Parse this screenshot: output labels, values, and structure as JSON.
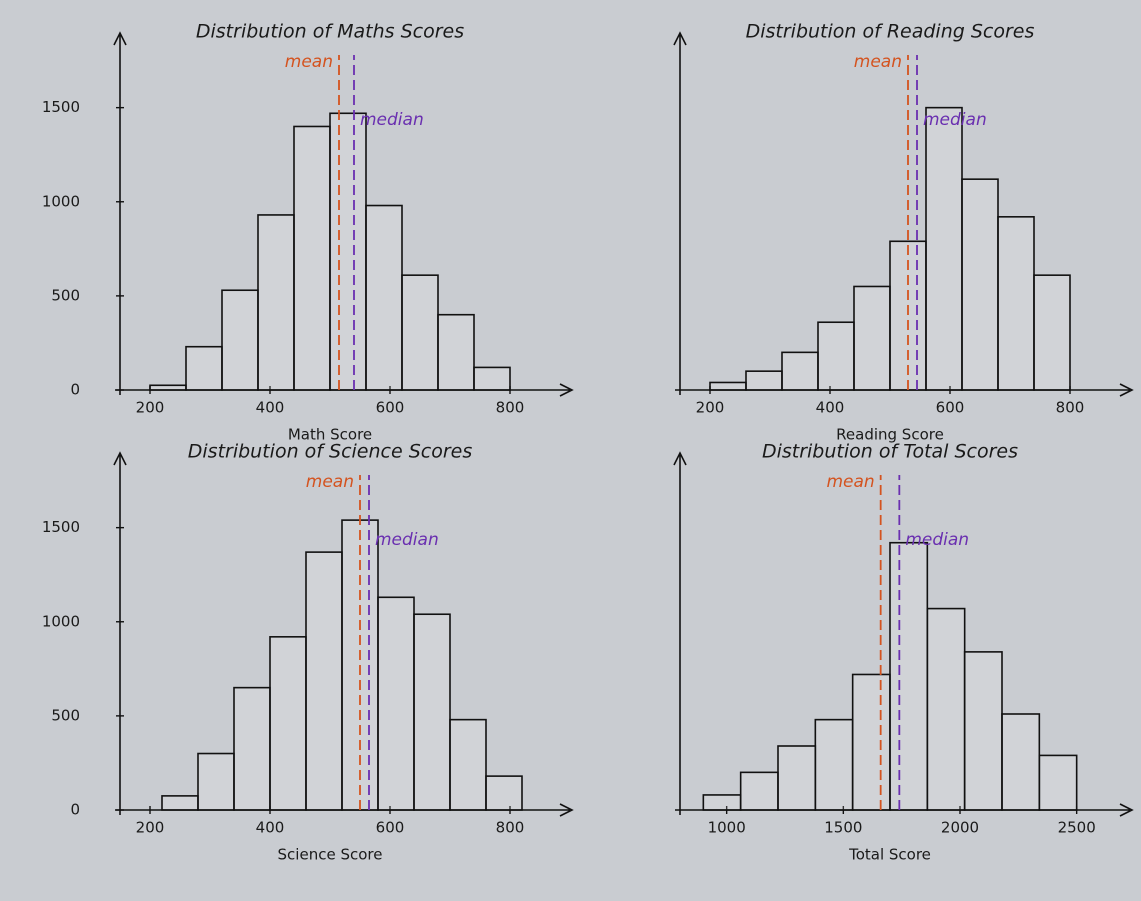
{
  "chart_data": [
    {
      "type": "histogram",
      "title": "Distribution of Maths Scores",
      "x_label": "Math Score",
      "bins": [
        200,
        260,
        320,
        380,
        440,
        500,
        560,
        620,
        680,
        740,
        800
      ],
      "counts": [
        25,
        230,
        530,
        930,
        1400,
        1470,
        980,
        610,
        400,
        120
      ],
      "xlim": [
        150,
        850
      ],
      "xticks": [
        200,
        400,
        600,
        800
      ],
      "ylim": [
        0,
        1700
      ],
      "yticks": [
        0,
        500,
        1000,
        1500
      ],
      "bar_color": "#ffffff",
      "lines": [
        {
          "label": "mean",
          "value": 515,
          "color": "#d4531f"
        },
        {
          "label": "median",
          "value": 540,
          "color": "#6a2fb0"
        }
      ]
    },
    {
      "type": "histogram",
      "title": "Distribution of Reading Scores",
      "x_label": "Reading Score",
      "bins": [
        200,
        260,
        320,
        380,
        440,
        500,
        560,
        620,
        680,
        740,
        800
      ],
      "counts": [
        40,
        100,
        200,
        360,
        550,
        790,
        1500,
        1120,
        920,
        610
      ],
      "xlim": [
        150,
        850
      ],
      "xticks": [
        200,
        400,
        600,
        800
      ],
      "ylim": [
        0,
        1700
      ],
      "bar_color": "#ffffff",
      "lines": [
        {
          "label": "mean",
          "value": 530,
          "color": "#d4531f"
        },
        {
          "label": "median",
          "value": 545,
          "color": "#6a2fb0"
        }
      ]
    },
    {
      "type": "histogram",
      "title": "Distribution of Science Scores",
      "x_label": "Science Score",
      "bins": [
        220,
        280,
        340,
        400,
        460,
        520,
        580,
        640,
        700,
        760,
        820
      ],
      "counts": [
        75,
        300,
        650,
        920,
        1370,
        1540,
        1130,
        1040,
        480,
        180
      ],
      "xlim": [
        150,
        850
      ],
      "xticks": [
        200,
        400,
        600,
        800
      ],
      "ylim": [
        0,
        1700
      ],
      "yticks": [
        0,
        500,
        1000,
        1500
      ],
      "bar_color": "#ffffff",
      "lines": [
        {
          "label": "mean",
          "value": 550,
          "color": "#d4531f"
        },
        {
          "label": "median",
          "value": 565,
          "color": "#6a2fb0"
        }
      ]
    },
    {
      "type": "histogram",
      "title": "Distribution of Total Scores",
      "x_label": "Total Score",
      "bins": [
        900,
        1060,
        1220,
        1380,
        1540,
        1700,
        1860,
        2020,
        2180,
        2340,
        2500
      ],
      "counts": [
        80,
        200,
        340,
        480,
        720,
        1420,
        1070,
        840,
        510,
        290
      ],
      "xlim": [
        800,
        2600
      ],
      "xticks": [
        1000,
        1500,
        2000,
        2500
      ],
      "ylim": [
        0,
        1700
      ],
      "bar_color": "#ffffff",
      "lines": [
        {
          "label": "mean",
          "value": 1660,
          "color": "#d4531f"
        },
        {
          "label": "median",
          "value": 1740,
          "color": "#6a2fb0"
        }
      ]
    }
  ]
}
